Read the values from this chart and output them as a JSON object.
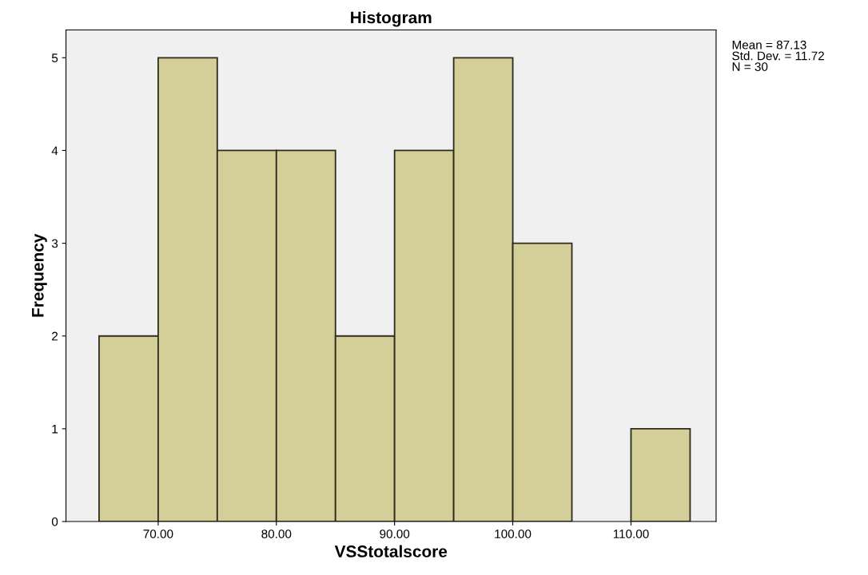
{
  "chart_data": {
    "type": "histogram",
    "title": "Histogram",
    "xlabel": "VSStotalscore",
    "ylabel": "Frequency",
    "bins": [
      65,
      70,
      75,
      80,
      85,
      90,
      95,
      100,
      105,
      110,
      115
    ],
    "values": [
      2,
      5,
      4,
      4,
      2,
      4,
      5,
      3,
      0,
      1
    ],
    "color": "#d4cf98",
    "xlim": [
      62.2,
      117.2
    ],
    "xticks": [
      {
        "value": 70,
        "label": "70.00"
      },
      {
        "value": 80,
        "label": "80.00"
      },
      {
        "value": 90,
        "label": "90.00"
      },
      {
        "value": 100,
        "label": "100.00"
      },
      {
        "value": 110,
        "label": "110.00"
      }
    ],
    "ylim": [
      0,
      5.3
    ],
    "yticks": [
      0,
      1,
      2,
      3,
      4,
      5
    ],
    "grid": false,
    "annotations": [
      "Mean = 87.13\nStd. Dev. = 11.72\nN = 30"
    ]
  }
}
